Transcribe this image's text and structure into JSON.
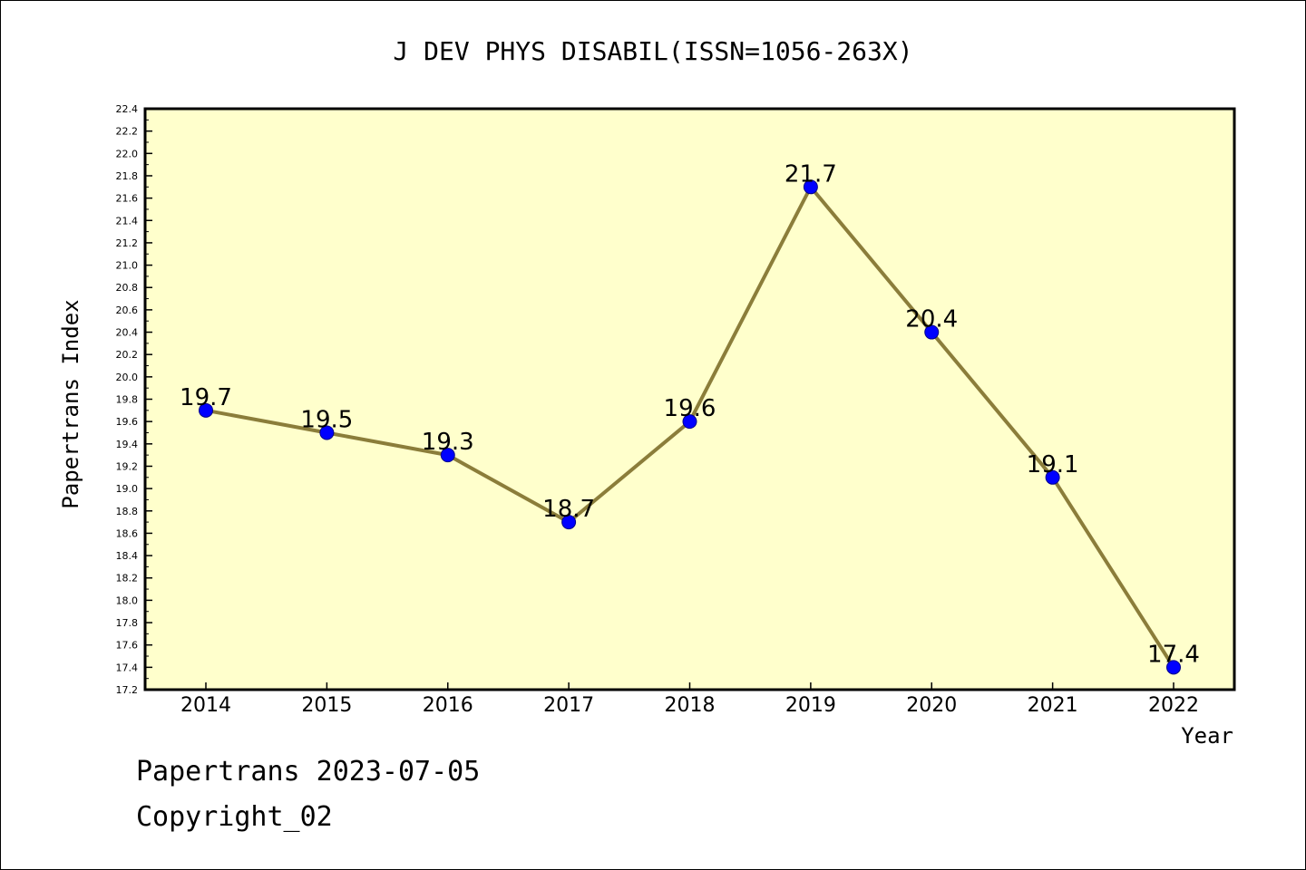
{
  "chart_data": {
    "type": "line",
    "title": "J DEV PHYS DISABIL(ISSN=1056-263X)",
    "xlabel": "Year",
    "ylabel": "Papertrans Index",
    "categories": [
      "2014",
      "2015",
      "2016",
      "2017",
      "2018",
      "2019",
      "2020",
      "2021",
      "2022"
    ],
    "values": [
      19.7,
      19.5,
      19.3,
      18.7,
      19.6,
      21.7,
      20.4,
      19.1,
      17.4
    ],
    "data_labels": [
      "19.7",
      "19.5",
      "19.3",
      "18.7",
      "19.6",
      "21.7",
      "20.4",
      "19.1",
      "17.4"
    ],
    "ylim": [
      17.2,
      22.4
    ],
    "yticks": [
      "17.2",
      "17.4",
      "17.6",
      "17.8",
      "18.0",
      "18.2",
      "18.4",
      "18.6",
      "18.8",
      "19.0",
      "19.2",
      "19.4",
      "19.6",
      "19.8",
      "20.0",
      "20.2",
      "20.4",
      "20.6",
      "20.8",
      "21.0",
      "21.2",
      "21.4",
      "21.6",
      "21.8",
      "22.0",
      "22.2",
      "22.4"
    ],
    "grid": false,
    "colors": {
      "plot_bg": "#ffffcc",
      "line": "#8b7d3a",
      "marker": "#0000ff"
    }
  },
  "footer": {
    "line1": "Papertrans 2023-07-05",
    "line2": "Copyright_02"
  }
}
